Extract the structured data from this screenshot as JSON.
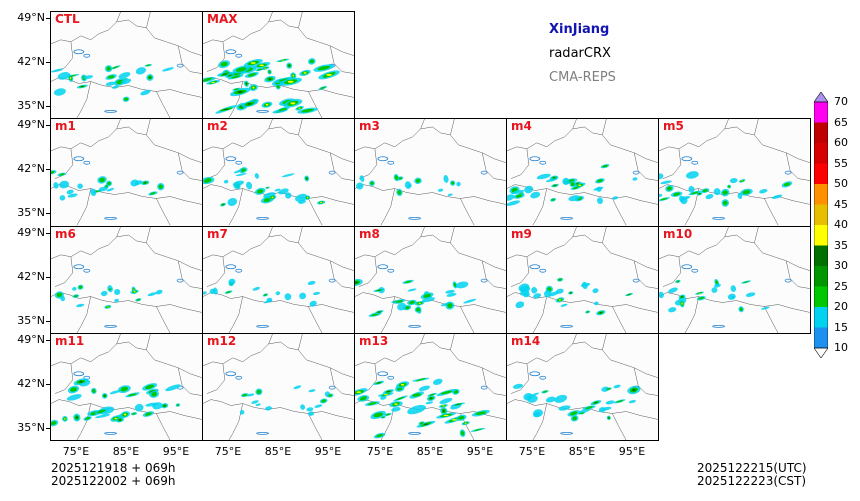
{
  "legend": {
    "title": "XinJiang",
    "title_color": "#1414b4",
    "variable": "radarCRX",
    "source": "CMA-REPS",
    "source_color": "#808080"
  },
  "panels": [
    {
      "id": "ctl",
      "label": "CTL",
      "row": 0,
      "col": 0,
      "intensity": 0.45
    },
    {
      "id": "max",
      "label": "MAX",
      "row": 0,
      "col": 1,
      "intensity": 1.0
    },
    {
      "id": "m1",
      "label": "m1",
      "row": 1,
      "col": 0,
      "intensity": 0.35
    },
    {
      "id": "m2",
      "label": "m2",
      "row": 1,
      "col": 1,
      "intensity": 0.5
    },
    {
      "id": "m3",
      "label": "m3",
      "row": 1,
      "col": 2,
      "intensity": 0.2
    },
    {
      "id": "m4",
      "label": "m4",
      "row": 1,
      "col": 3,
      "intensity": 0.55
    },
    {
      "id": "m5",
      "label": "m5",
      "row": 1,
      "col": 4,
      "intensity": 0.5
    },
    {
      "id": "m6",
      "label": "m6",
      "row": 2,
      "col": 0,
      "intensity": 0.3
    },
    {
      "id": "m7",
      "label": "m7",
      "row": 2,
      "col": 1,
      "intensity": 0.25
    },
    {
      "id": "m8",
      "label": "m8",
      "row": 2,
      "col": 2,
      "intensity": 0.5
    },
    {
      "id": "m9",
      "label": "m9",
      "row": 2,
      "col": 3,
      "intensity": 0.4
    },
    {
      "id": "m10",
      "label": "m10",
      "row": 2,
      "col": 4,
      "intensity": 0.35
    },
    {
      "id": "m11",
      "label": "m11",
      "row": 3,
      "col": 0,
      "intensity": 0.65
    },
    {
      "id": "m12",
      "label": "m12",
      "row": 3,
      "col": 1,
      "intensity": 0.25
    },
    {
      "id": "m13",
      "label": "m13",
      "row": 3,
      "col": 2,
      "intensity": 0.85
    },
    {
      "id": "m14",
      "label": "m14",
      "row": 3,
      "col": 3,
      "intensity": 0.5
    }
  ],
  "axes": {
    "y_ticks": [
      "49°N",
      "42°N",
      "35°N"
    ],
    "x_ticks": [
      "75°E",
      "85°E",
      "95°E"
    ]
  },
  "info": {
    "init_utc": "2025121918  +  069h",
    "init_cst": "2025122002  +  069h",
    "valid_utc": "2025122215(UTC)",
    "valid_cst": "2025122223(CST)"
  },
  "chart_data": {
    "type": "heatmap",
    "title": "XinJiang radarCRX CMA-REPS",
    "variable": "radarCRX",
    "colorbar": {
      "levels": [
        10,
        15,
        20,
        25,
        30,
        35,
        40,
        45,
        50,
        55,
        60,
        65,
        70
      ],
      "labels": [
        "10",
        "15",
        "20",
        "25",
        "30",
        "35",
        "40",
        "45",
        "50",
        "55",
        "60",
        "65",
        "70"
      ],
      "colors": [
        "#1e90f0",
        "#00d2f0",
        "#00c800",
        "#009600",
        "#007000",
        "#ffff00",
        "#e6c000",
        "#ff9000",
        "#ff0000",
        "#d60000",
        "#c00000",
        "#ff00f0",
        "#9600b4",
        "#ad90f0"
      ],
      "extend": "both"
    },
    "lat_ticks": [
      "49°N",
      "42°N",
      "35°N"
    ],
    "lon_ticks": [
      "75°E",
      "85°E",
      "95°E"
    ],
    "members": [
      "CTL",
      "MAX",
      "m1",
      "m2",
      "m3",
      "m4",
      "m5",
      "m6",
      "m7",
      "m8",
      "m9",
      "m10",
      "m11",
      "m12",
      "m13",
      "m14"
    ]
  }
}
